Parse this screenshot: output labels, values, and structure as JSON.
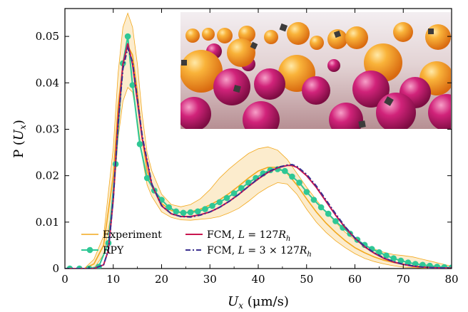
{
  "chart_data": {
    "type": "line",
    "xlabel": "Ux (μm/s)",
    "ylabel": "P (Ux)",
    "xlabel_parts": {
      "var": "U",
      "sub": "x",
      "unit": " (μm/s)"
    },
    "ylabel_parts": {
      "prefix": "P (",
      "var": "U",
      "sub": "x",
      "suffix": ")"
    },
    "xlim": [
      0,
      80
    ],
    "ylim": [
      0,
      0.056
    ],
    "xticks": [
      0,
      10,
      20,
      30,
      40,
      50,
      60,
      70,
      80
    ],
    "yticks": [
      0,
      0.01,
      0.02,
      0.03,
      0.04,
      0.05
    ],
    "ytick_labels": [
      "0",
      "0.01",
      "0.02",
      "0.03",
      "0.04",
      "0.05"
    ],
    "grid": false,
    "legend_location": "bottom-center",
    "series": [
      {
        "name": "Experiment",
        "color": "#f2a81d",
        "style": "line-with-band",
        "x": [
          0,
          2,
          4,
          6,
          8,
          10,
          11,
          12,
          13,
          14,
          15,
          16,
          17,
          18,
          20,
          22,
          24,
          26,
          28,
          30,
          32,
          34,
          36,
          38,
          40,
          42,
          44,
          46,
          48,
          50,
          52,
          54,
          56,
          58,
          60,
          62,
          64,
          66,
          68,
          70,
          72,
          74,
          76,
          78,
          80
        ],
        "values": [
          0,
          0,
          0,
          0.001,
          0.005,
          0.02,
          0.035,
          0.044,
          0.048,
          0.046,
          0.038,
          0.028,
          0.021,
          0.018,
          0.014,
          0.0125,
          0.012,
          0.0122,
          0.0128,
          0.0137,
          0.0148,
          0.0162,
          0.0178,
          0.0195,
          0.021,
          0.0218,
          0.0218,
          0.0205,
          0.018,
          0.015,
          0.0122,
          0.0098,
          0.0078,
          0.006,
          0.0045,
          0.0034,
          0.0025,
          0.0018,
          0.0013,
          0.0009,
          0.0006,
          0.0004,
          0.0003,
          0.0002,
          0.0001
        ],
        "upper": [
          0,
          0,
          0,
          0.002,
          0.007,
          0.026,
          0.042,
          0.052,
          0.055,
          0.052,
          0.044,
          0.033,
          0.025,
          0.021,
          0.016,
          0.0138,
          0.0133,
          0.0138,
          0.015,
          0.017,
          0.0195,
          0.0215,
          0.0232,
          0.0248,
          0.0258,
          0.0262,
          0.0255,
          0.0235,
          0.0205,
          0.0175,
          0.0148,
          0.0122,
          0.01,
          0.0078,
          0.0062,
          0.0048,
          0.0042,
          0.0035,
          0.003,
          0.0028,
          0.0025,
          0.002,
          0.0015,
          0.001,
          0.0005
        ],
        "lower": [
          0,
          0,
          0,
          0,
          0.003,
          0.014,
          0.028,
          0.036,
          0.039,
          0.038,
          0.032,
          0.024,
          0.018,
          0.0155,
          0.0122,
          0.011,
          0.0105,
          0.0104,
          0.0106,
          0.0108,
          0.0112,
          0.012,
          0.013,
          0.0145,
          0.0162,
          0.0175,
          0.0185,
          0.0182,
          0.016,
          0.0128,
          0.01,
          0.0078,
          0.006,
          0.0045,
          0.0032,
          0.0022,
          0.0015,
          0.001,
          0.0006,
          0.0003,
          0.0002,
          0.0001,
          0,
          0,
          0
        ]
      },
      {
        "name": "RPY",
        "color": "#2fc795",
        "style": "line-with-markers",
        "x": [
          1,
          3,
          5,
          7,
          9,
          10.5,
          12,
          13,
          14,
          15.5,
          17,
          18.5,
          20,
          21.5,
          23,
          24.5,
          26,
          27.5,
          29,
          30.5,
          32,
          33.5,
          35,
          36.5,
          38,
          39.5,
          41,
          42.5,
          44,
          45.5,
          47,
          48.5,
          50,
          51.5,
          53,
          54.5,
          56,
          57.5,
          59,
          60.5,
          62,
          63.5,
          65,
          66.5,
          68,
          69.5,
          71,
          72.5,
          74,
          75.5,
          77,
          78.5,
          80
        ],
        "values": [
          0,
          0,
          0,
          0.0004,
          0.0055,
          0.0225,
          0.0442,
          0.05,
          0.0395,
          0.0268,
          0.0195,
          0.0168,
          0.0148,
          0.0132,
          0.0123,
          0.012,
          0.0121,
          0.0123,
          0.0128,
          0.0135,
          0.0143,
          0.0152,
          0.0162,
          0.0173,
          0.0185,
          0.0195,
          0.0205,
          0.0212,
          0.0214,
          0.021,
          0.0198,
          0.0185,
          0.0165,
          0.0148,
          0.0132,
          0.0118,
          0.0102,
          0.0088,
          0.0075,
          0.0062,
          0.0051,
          0.0042,
          0.0035,
          0.0028,
          0.0022,
          0.0017,
          0.0013,
          0.001,
          0.0008,
          0.0006,
          0.0004,
          0.0003,
          0.0002
        ]
      },
      {
        "name": "FCM, L=127Rh",
        "color": "#c8154f",
        "style": "line",
        "x": [
          0,
          4,
          6,
          8,
          9,
          10,
          11,
          12,
          13,
          14,
          15,
          16,
          18,
          20,
          22,
          24,
          26,
          28,
          30,
          32,
          34,
          36,
          38,
          40,
          42,
          44,
          46,
          47,
          48,
          50,
          52,
          54,
          56,
          58,
          60,
          62,
          64,
          66,
          68,
          70,
          72,
          74,
          76,
          78,
          80
        ],
        "values": [
          0,
          0,
          0,
          0.0008,
          0.004,
          0.015,
          0.032,
          0.044,
          0.0485,
          0.044,
          0.036,
          0.028,
          0.018,
          0.0135,
          0.0118,
          0.0112,
          0.0112,
          0.0116,
          0.0122,
          0.0132,
          0.0145,
          0.016,
          0.0177,
          0.0193,
          0.0207,
          0.0217,
          0.0222,
          0.0222,
          0.0218,
          0.02,
          0.0175,
          0.0145,
          0.0115,
          0.0088,
          0.0065,
          0.0047,
          0.0033,
          0.0022,
          0.0014,
          0.0009,
          0.0005,
          0.0003,
          0.0002,
          0.0001,
          0.0001
        ]
      },
      {
        "name": "FCM, L=3×127Rh",
        "color": "#3a2f8f",
        "style": "dashdot",
        "x": [
          0,
          4,
          6,
          8,
          9,
          10,
          11,
          12,
          13,
          14,
          15,
          16,
          18,
          20,
          22,
          24,
          26,
          28,
          30,
          32,
          34,
          36,
          38,
          40,
          42,
          44,
          46,
          47,
          48,
          50,
          52,
          54,
          56,
          58,
          60,
          62,
          64,
          66,
          68,
          70,
          72,
          74,
          76,
          78,
          80
        ],
        "values": [
          0,
          0,
          0,
          0.0008,
          0.004,
          0.015,
          0.031,
          0.043,
          0.0475,
          0.0445,
          0.0365,
          0.0285,
          0.0182,
          0.0136,
          0.0118,
          0.0112,
          0.0111,
          0.0115,
          0.0122,
          0.0132,
          0.0145,
          0.016,
          0.0177,
          0.0194,
          0.0208,
          0.0218,
          0.0223,
          0.0224,
          0.022,
          0.0203,
          0.0178,
          0.0148,
          0.0118,
          0.009,
          0.0066,
          0.0048,
          0.0034,
          0.0023,
          0.0015,
          0.0009,
          0.0006,
          0.0003,
          0.0002,
          0.0001,
          0.0001
        ]
      }
    ],
    "legend": [
      {
        "prefix": "Experiment",
        "var": "",
        "sub": "",
        "mid": "",
        "suffix": ""
      },
      {
        "prefix": "FCM, ",
        "var": "L",
        "sub": "h",
        "mid": " = 127",
        "suffix": "R"
      },
      {
        "prefix": "RPY",
        "var": "",
        "sub": "",
        "mid": "",
        "suffix": ""
      },
      {
        "prefix": "FCM, ",
        "var": "L",
        "sub": "h",
        "mid": " = 3 × 127",
        "suffix": "R"
      }
    ]
  },
  "inset_image": {
    "description_icon": "colloidal-spheres-render-image",
    "colors": {
      "orange": "#f7a028",
      "magenta": "#d1237a",
      "floor": "#d9c6c4",
      "sky": "#f4eef0"
    }
  }
}
